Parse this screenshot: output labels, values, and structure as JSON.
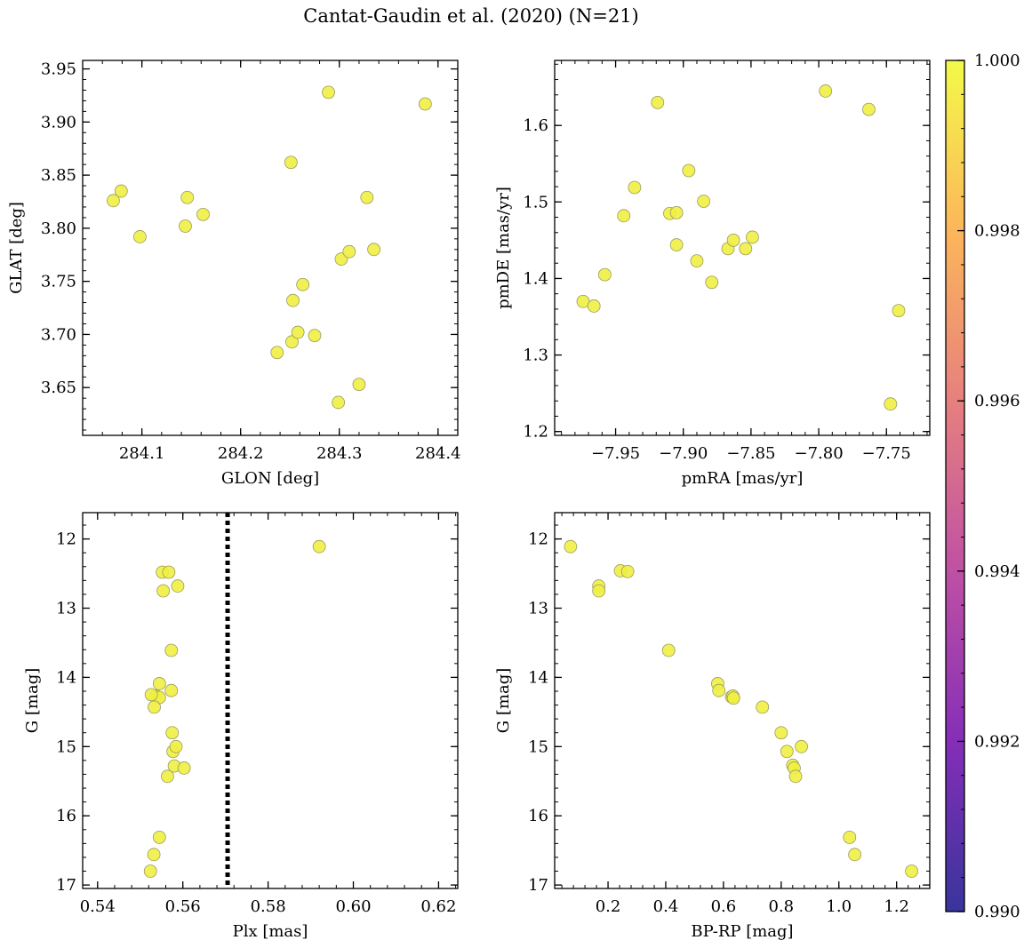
{
  "figure": {
    "title": "Cantat-Gaudin et al. (2020) (N=21)",
    "marker_color": "#f0f043",
    "marker_edge": "#9a9a60"
  },
  "chart_data": [
    {
      "type": "scatter",
      "id": "glon-glat",
      "xlabel": "GLON [deg]",
      "ylabel": "GLAT [deg]",
      "xlim": [
        284.04,
        284.42
      ],
      "ylim": [
        3.605,
        3.958
      ],
      "xticks": [
        284.1,
        284.2,
        284.3,
        284.4
      ],
      "xticklabels": [
        "284.1",
        "284.2",
        "284.3",
        "284.4"
      ],
      "yticks": [
        3.65,
        3.7,
        3.75,
        3.8,
        3.85,
        3.9,
        3.95
      ],
      "yticklabels": [
        "3.65",
        "3.70",
        "3.75",
        "3.80",
        "3.85",
        "3.90",
        "3.95"
      ],
      "invert_y": false,
      "x": [
        284.071,
        284.079,
        284.098,
        284.144,
        284.146,
        284.162,
        284.237,
        284.251,
        284.253,
        284.252,
        284.258,
        284.263,
        284.275,
        284.289,
        284.299,
        284.302,
        284.31,
        284.32,
        284.328,
        284.335,
        284.387
      ],
      "y": [
        3.826,
        3.835,
        3.792,
        3.802,
        3.829,
        3.813,
        3.683,
        3.862,
        3.732,
        3.693,
        3.702,
        3.747,
        3.699,
        3.928,
        3.636,
        3.771,
        3.778,
        3.653,
        3.829,
        3.78,
        3.917
      ]
    },
    {
      "type": "scatter",
      "id": "pmra-pmde",
      "xlabel": "pmRA [mas/yr]",
      "ylabel": "pmDE [mas/yr]",
      "xlim": [
        -7.995,
        -7.718
      ],
      "ylim": [
        1.195,
        1.685
      ],
      "xticks": [
        -7.95,
        -7.9,
        -7.85,
        -7.8,
        -7.75
      ],
      "xticklabels": [
        "−7.95",
        "−7.90",
        "−7.85",
        "−7.80",
        "−7.75"
      ],
      "yticks": [
        1.2,
        1.3,
        1.4,
        1.5,
        1.6
      ],
      "yticklabels": [
        "1.2",
        "1.3",
        "1.4",
        "1.5",
        "1.6"
      ],
      "invert_y": false,
      "x": [
        -7.974,
        -7.966,
        -7.958,
        -7.944,
        -7.936,
        -7.919,
        -7.91,
        -7.905,
        -7.905,
        -7.896,
        -7.89,
        -7.885,
        -7.879,
        -7.867,
        -7.863,
        -7.854,
        -7.849,
        -7.795,
        -7.763,
        -7.747,
        -7.741
      ],
      "y": [
        1.37,
        1.364,
        1.405,
        1.482,
        1.519,
        1.63,
        1.485,
        1.486,
        1.444,
        1.541,
        1.423,
        1.501,
        1.395,
        1.439,
        1.45,
        1.439,
        1.454,
        1.645,
        1.621,
        1.236,
        1.358
      ]
    },
    {
      "type": "scatter",
      "id": "plx-g",
      "xlabel": "Plx [mas]",
      "ylabel": "G [mag]",
      "xlim": [
        0.5365,
        0.6245
      ],
      "ylim": [
        11.62,
        17.05
      ],
      "xticks": [
        0.54,
        0.56,
        0.58,
        0.6,
        0.62
      ],
      "xticklabels": [
        "0.54",
        "0.56",
        "0.58",
        "0.60",
        "0.62"
      ],
      "yticks": [
        12,
        13,
        14,
        15,
        16,
        17
      ],
      "yticklabels": [
        "12",
        "13",
        "14",
        "15",
        "16",
        "17"
      ],
      "invert_y": true,
      "vline": 0.5705,
      "x": [
        0.5545,
        0.5552,
        0.5554,
        0.5537,
        0.5545,
        0.5564,
        0.5545,
        0.5533,
        0.5532,
        0.5524,
        0.5526,
        0.5567,
        0.5573,
        0.5575,
        0.5588,
        0.5573,
        0.5577,
        0.5584,
        0.558,
        0.5603,
        0.592
      ],
      "y": [
        14.09,
        12.48,
        12.75,
        14.27,
        14.29,
        15.43,
        16.31,
        14.43,
        16.56,
        16.8,
        14.25,
        12.48,
        14.19,
        14.8,
        12.68,
        13.61,
        15.07,
        15.0,
        15.28,
        15.31,
        12.11
      ]
    },
    {
      "type": "scatter",
      "id": "bprp-g",
      "xlabel": "BP-RP [mag]",
      "ylabel": "G [mag]",
      "xlim": [
        0.015,
        1.315
      ],
      "ylim": [
        11.62,
        17.05
      ],
      "xticks": [
        0.2,
        0.4,
        0.6,
        0.8,
        1.0,
        1.2
      ],
      "xticklabels": [
        "0.2",
        "0.4",
        "0.6",
        "0.8",
        "1.0",
        "1.2"
      ],
      "yticks": [
        12,
        13,
        14,
        15,
        16,
        17
      ],
      "yticklabels": [
        "12",
        "13",
        "14",
        "15",
        "16",
        "17"
      ],
      "invert_y": true,
      "x": [
        0.07,
        0.168,
        0.168,
        0.243,
        0.268,
        0.41,
        0.58,
        0.584,
        0.628,
        0.633,
        0.635,
        0.735,
        0.8,
        0.82,
        0.84,
        0.845,
        0.85,
        0.87,
        1.037,
        1.055,
        1.252
      ],
      "y": [
        12.11,
        12.68,
        12.75,
        12.46,
        12.47,
        13.61,
        14.09,
        14.19,
        14.28,
        14.27,
        14.3,
        14.43,
        14.8,
        15.07,
        15.27,
        15.31,
        15.43,
        15.0,
        16.31,
        16.56,
        16.8
      ]
    },
    {
      "type": "colorbar",
      "id": "colorbar",
      "colormap": "plasma",
      "range": [
        0.99,
        1.0
      ],
      "ticks": [
        0.99,
        0.992,
        0.994,
        0.996,
        0.998,
        1.0
      ],
      "ticklabels": [
        "0.990",
        "0.992",
        "0.994",
        "0.996",
        "0.998",
        "1.000"
      ],
      "stops": [
        "#0d0887",
        "#6a00a8",
        "#b12a90",
        "#e16462",
        "#fca636",
        "#f0f921"
      ]
    }
  ]
}
